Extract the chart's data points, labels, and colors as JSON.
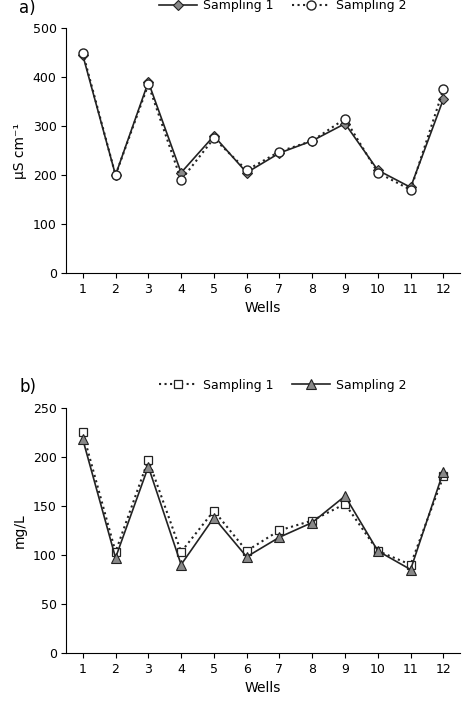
{
  "wells": [
    1,
    2,
    3,
    4,
    5,
    6,
    7,
    8,
    9,
    10,
    11,
    12
  ],
  "panel_a": {
    "sampling1": [
      445,
      200,
      390,
      205,
      280,
      205,
      245,
      270,
      305,
      210,
      175,
      355
    ],
    "sampling2": [
      450,
      200,
      385,
      190,
      275,
      210,
      248,
      270,
      315,
      205,
      170,
      375
    ]
  },
  "panel_b": {
    "sampling1": [
      225,
      103,
      197,
      103,
      145,
      104,
      125,
      135,
      152,
      104,
      90,
      180
    ],
    "sampling2": [
      218,
      97,
      190,
      90,
      138,
      98,
      118,
      133,
      160,
      104,
      85,
      185
    ]
  },
  "label_a": "a)",
  "label_b": "b)",
  "legend_a_s1": "Sampling 1",
  "legend_a_s2": "Sampling 2",
  "legend_b_s1": "Sampling 1",
  "legend_b_s2": "Sampling 2",
  "ylabel_a": "μS cm⁻¹",
  "ylabel_b": "mg/L",
  "xlabel": "Wells",
  "ylim_a": [
    0,
    500
  ],
  "ylim_b": [
    0,
    250
  ],
  "yticks_a": [
    0,
    100,
    200,
    300,
    400,
    500
  ],
  "yticks_b": [
    0,
    50,
    100,
    150,
    200,
    250
  ],
  "bg_color": "#ffffff",
  "line_color": "#222222",
  "marker_color_filled": "#888888",
  "marker_color_open": "#ffffff"
}
